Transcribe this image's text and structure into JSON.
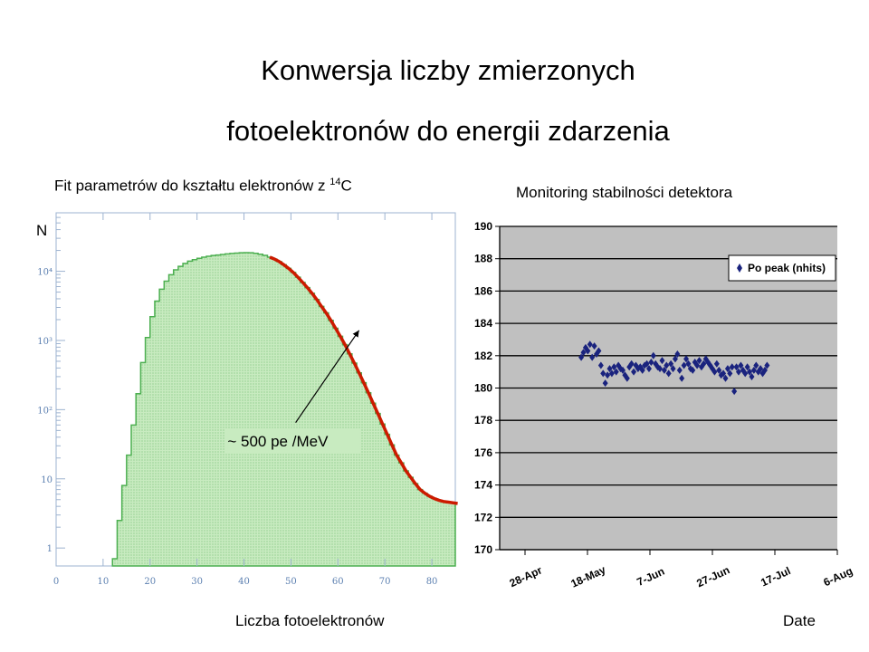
{
  "slide": {
    "title_line1": "Konwersja liczby zmierzonych",
    "title_line2": "fotoelektronów do energii zdarzenia"
  },
  "chart_data": [
    {
      "type": "area",
      "title_main": "Fit parametrów do kształtu elektronów z ",
      "title_sup": "14",
      "title_tail": "C",
      "xlabel": "Liczba fotoelektronów",
      "ylabel": "N",
      "yscale": "log",
      "xlim": [
        0,
        85
      ],
      "ylim": [
        0.55,
        70000
      ],
      "x_ticks": [
        0,
        10,
        20,
        30,
        40,
        50,
        60,
        70,
        80
      ],
      "y_ticks": [
        {
          "value": 1,
          "label": "1"
        },
        {
          "value": 10,
          "label": "10"
        },
        {
          "value": 100,
          "label": "10²"
        },
        {
          "value": 1000,
          "label": "10³"
        },
        {
          "value": 10000,
          "label": "10⁴"
        }
      ],
      "histogram": {
        "x": [
          12,
          13,
          14,
          15,
          16,
          17,
          18,
          19,
          20,
          21,
          22,
          23,
          24,
          25,
          26,
          27,
          28,
          29,
          30,
          31,
          32,
          33,
          34,
          35,
          36,
          37,
          38,
          39,
          40,
          41,
          42,
          43,
          44,
          45,
          46,
          47,
          48,
          49,
          50,
          51,
          52,
          53,
          54,
          55,
          56,
          57,
          58,
          59,
          60,
          61,
          62,
          63,
          64,
          65,
          66,
          67,
          68,
          69,
          70,
          71,
          72,
          73,
          74,
          75,
          76,
          77,
          78,
          79,
          80,
          81,
          82,
          83,
          84,
          85
        ],
        "y": [
          0.7,
          2.5,
          8,
          22,
          60,
          170,
          480,
          1100,
          2200,
          3700,
          5500,
          7200,
          8900,
          10500,
          11800,
          13000,
          14000,
          14700,
          15400,
          16000,
          16500,
          16900,
          17200,
          17500,
          17800,
          18100,
          18300,
          18500,
          18600,
          18500,
          18200,
          17600,
          17000,
          16000,
          15000,
          13800,
          12400,
          11000,
          9600,
          8200,
          6900,
          5800,
          4800,
          3900,
          3100,
          2500,
          1950,
          1500,
          1150,
          870,
          640,
          470,
          340,
          245,
          175,
          124,
          88,
          62,
          44,
          31,
          22,
          17,
          13,
          10.5,
          8.5,
          7,
          6.2,
          5.6,
          5.2,
          4.9,
          4.7,
          4.6,
          4.5,
          4.4
        ]
      },
      "fit_range": [
        45,
        85
      ],
      "annotation": "~ 500 pe /MeV",
      "colors": {
        "fill": "#c8ebc0",
        "outline": "#4caf50",
        "fit": "#cc1a00"
      }
    },
    {
      "type": "scatter",
      "title": "Monitoring stabilności detektora",
      "xlabel": "Date",
      "ylim": [
        170,
        190
      ],
      "y_ticks": [
        170,
        172,
        174,
        176,
        178,
        180,
        182,
        184,
        186,
        188,
        190
      ],
      "x_ticks": [
        "28-Apr",
        "18-May",
        "7-Jun",
        "27-Jun",
        "17-Jul",
        "6-Aug"
      ],
      "legend": "Po peak (nhits)",
      "legend_position": "top-right",
      "series": [
        {
          "name": "Po peak (nhits)",
          "x_days_since_28apr": [
            18,
            18.7,
            19.4,
            20.1,
            20.8,
            21.5,
            22.2,
            22.9,
            23.6,
            24.3,
            25,
            25.7,
            26.4,
            27.1,
            27.8,
            28.5,
            29.2,
            29.9,
            30.6,
            31.3,
            32,
            32.7,
            33.4,
            34.1,
            34.8,
            35.5,
            36.2,
            36.9,
            37.6,
            38.3,
            39,
            39.7,
            40.4,
            41.1,
            41.8,
            42.5,
            43.2,
            43.9,
            44.6,
            45.3,
            46,
            46.7,
            47.4,
            48.1,
            48.8,
            49.5,
            50.2,
            50.9,
            51.6,
            52.3,
            53,
            53.7,
            54.4,
            55.1,
            55.8,
            56.5,
            57.2,
            57.9,
            58.6,
            59.3,
            60,
            60.7,
            61.4,
            62.1,
            62.8,
            63.5,
            64.2,
            64.9,
            65.6,
            66.3,
            67,
            67.7,
            68.4,
            69.1,
            69.8,
            70.5,
            71.2,
            71.9,
            72.6,
            73.3,
            74,
            74.7,
            75.4,
            76.1,
            76.8,
            77.5
          ],
          "y": [
            181.9,
            182.2,
            182.5,
            182.3,
            182.7,
            181.9,
            182.6,
            182.1,
            182.3,
            181.4,
            180.9,
            180.3,
            180.8,
            181.2,
            180.9,
            181.3,
            181.0,
            181.4,
            181.2,
            181.1,
            180.8,
            180.6,
            181.3,
            181.5,
            181.0,
            181.4,
            181.2,
            181.3,
            181.1,
            181.4,
            181.5,
            181.2,
            181.6,
            182.0,
            181.5,
            181.3,
            181.2,
            181.7,
            181.1,
            181.4,
            180.9,
            181.5,
            181.2,
            181.8,
            182.1,
            181.1,
            180.6,
            181.4,
            181.8,
            181.5,
            181.2,
            181.1,
            181.6,
            181.4,
            181.7,
            181.3,
            181.5,
            181.8,
            181.6,
            181.4,
            181.2,
            181.0,
            181.5,
            181.1,
            180.8,
            180.9,
            180.6,
            181.2,
            180.9,
            181.3,
            179.8,
            181.3,
            181.0,
            181.4,
            181.1,
            180.9,
            181.3,
            181.0,
            180.7,
            181.1,
            181.4,
            181.0,
            181.2,
            180.9,
            181.1,
            181.4
          ]
        }
      ],
      "colors": {
        "plot_bg": "#c0c0c0",
        "marker": "#1a237e",
        "grid": "#000000"
      }
    }
  ]
}
